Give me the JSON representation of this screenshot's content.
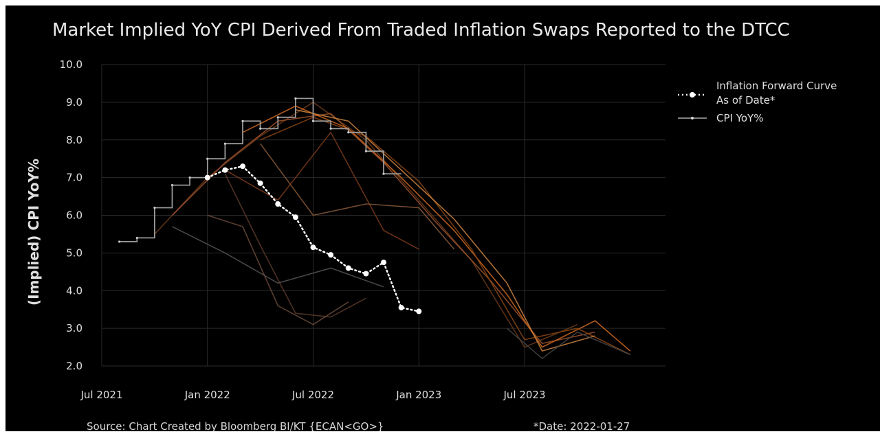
{
  "chart_data": {
    "type": "line",
    "title": "Market Implied YoY CPI Derived From Traded Inflation Swaps Reported to the DTCC",
    "ylabel": "(Implied) CPI YoY%",
    "xlabel": "",
    "ylim": [
      2.0,
      10.0
    ],
    "yticks": [
      "10.0",
      "9.0",
      "8.0",
      "7.0",
      "6.0",
      "5.0",
      "4.0",
      "3.0",
      "2.0"
    ],
    "xlim": [
      "2021-07",
      "2024-03"
    ],
    "xticks": [
      {
        "label": "Jul 2021",
        "date": "2021-07"
      },
      {
        "label": "Jan 2022",
        "date": "2022-01"
      },
      {
        "label": "Jul 2022",
        "date": "2022-07"
      },
      {
        "label": "Jan 2023",
        "date": "2023-01"
      },
      {
        "label": "Jul 2023",
        "date": "2023-07"
      }
    ],
    "grid": true,
    "legend_position": "top-right",
    "legend": [
      {
        "label": "Inflation Forward Curve",
        "label2": "As of Date*",
        "style": "dotted-white-markers"
      },
      {
        "label": "CPI YoY%",
        "style": "solid-line"
      }
    ],
    "series": [
      {
        "name": "Inflation Forward Curve As of Date*",
        "color": "#ffffff",
        "points": [
          [
            "2022-01",
            7.0
          ],
          [
            "2022-02",
            7.2
          ],
          [
            "2022-03",
            7.3
          ],
          [
            "2022-04",
            6.85
          ],
          [
            "2022-05",
            6.3
          ],
          [
            "2022-06",
            5.95
          ],
          [
            "2022-07",
            5.15
          ],
          [
            "2022-08",
            4.95
          ],
          [
            "2022-09",
            4.6
          ],
          [
            "2022-10",
            4.45
          ],
          [
            "2022-11",
            4.75
          ],
          [
            "2022-12",
            3.55
          ],
          [
            "2023-01",
            3.45
          ]
        ]
      },
      {
        "name": "CPI YoY%",
        "color": "#9a9a9a",
        "step": true,
        "points": [
          [
            "2021-08",
            5.3
          ],
          [
            "2021-09",
            5.4
          ],
          [
            "2021-10",
            6.2
          ],
          [
            "2021-11",
            6.8
          ],
          [
            "2021-12",
            7.0
          ],
          [
            "2022-01",
            7.5
          ],
          [
            "2022-02",
            7.9
          ],
          [
            "2022-03",
            8.5
          ],
          [
            "2022-04",
            8.3
          ],
          [
            "2022-05",
            8.6
          ],
          [
            "2022-06",
            9.1
          ],
          [
            "2022-07",
            8.5
          ],
          [
            "2022-08",
            8.3
          ],
          [
            "2022-09",
            8.2
          ],
          [
            "2022-10",
            7.7
          ],
          [
            "2022-11",
            7.1
          ]
        ]
      }
    ],
    "background_curves": [
      {
        "color": "#6b3a1a",
        "points": [
          [
            "2021-10",
            5.5
          ],
          [
            "2022-01",
            7.0
          ],
          [
            "2022-04",
            8.1
          ],
          [
            "2022-07",
            9.0
          ],
          [
            "2022-10",
            8.0
          ],
          [
            "2023-01",
            6.4
          ],
          [
            "2023-04",
            4.8
          ],
          [
            "2023-07",
            2.5
          ],
          [
            "2023-10",
            3.1
          ]
        ]
      },
      {
        "color": "#a0522d",
        "points": [
          [
            "2021-11",
            6.0
          ],
          [
            "2022-02",
            7.4
          ],
          [
            "2022-05",
            8.5
          ],
          [
            "2022-08",
            8.7
          ],
          [
            "2022-11",
            7.4
          ],
          [
            "2023-02",
            5.8
          ],
          [
            "2023-05",
            4.3
          ],
          [
            "2023-08",
            2.6
          ],
          [
            "2023-11",
            2.9
          ]
        ]
      },
      {
        "color": "#d2691e",
        "points": [
          [
            "2022-03",
            8.2
          ],
          [
            "2022-06",
            8.9
          ],
          [
            "2022-09",
            8.3
          ],
          [
            "2022-12",
            7.0
          ],
          [
            "2023-03",
            5.6
          ],
          [
            "2023-06",
            3.9
          ],
          [
            "2023-08",
            2.5
          ],
          [
            "2023-11",
            3.2
          ],
          [
            "2024-01",
            2.4
          ]
        ]
      },
      {
        "color": "#8b4513",
        "points": [
          [
            "2022-04",
            8.0
          ],
          [
            "2022-07",
            8.6
          ],
          [
            "2022-10",
            8.1
          ],
          [
            "2023-01",
            6.9
          ],
          [
            "2023-04",
            5.1
          ],
          [
            "2023-07",
            2.7
          ],
          [
            "2023-10",
            3.0
          ],
          [
            "2024-01",
            2.3
          ]
        ]
      },
      {
        "color": "#cd853f",
        "points": [
          [
            "2022-06",
            8.8
          ],
          [
            "2022-09",
            8.5
          ],
          [
            "2022-12",
            7.2
          ],
          [
            "2023-03",
            5.9
          ],
          [
            "2023-06",
            4.2
          ],
          [
            "2023-08",
            2.4
          ],
          [
            "2023-11",
            2.8
          ]
        ]
      },
      {
        "color": "#5a3a2a",
        "points": [
          [
            "2022-02",
            7.1
          ],
          [
            "2022-04",
            5.2
          ],
          [
            "2022-06",
            3.4
          ],
          [
            "2022-08",
            3.3
          ],
          [
            "2022-10",
            3.8
          ]
        ]
      },
      {
        "color": "#6a4a3a",
        "points": [
          [
            "2022-01",
            6.0
          ],
          [
            "2022-03",
            5.7
          ],
          [
            "2022-05",
            3.6
          ],
          [
            "2022-07",
            3.1
          ],
          [
            "2022-09",
            3.7
          ]
        ]
      },
      {
        "color": "#7a3a1a",
        "points": [
          [
            "2022-02",
            7.2
          ],
          [
            "2022-05",
            6.4
          ],
          [
            "2022-08",
            8.2
          ],
          [
            "2022-11",
            5.6
          ],
          [
            "2023-01",
            5.1
          ]
        ]
      },
      {
        "color": "#555555",
        "points": [
          [
            "2021-11",
            5.7
          ],
          [
            "2022-02",
            5.0
          ],
          [
            "2022-05",
            4.2
          ],
          [
            "2022-08",
            4.6
          ],
          [
            "2022-11",
            4.1
          ]
        ]
      },
      {
        "color": "#8a5a3a",
        "points": [
          [
            "2022-04",
            7.9
          ],
          [
            "2022-07",
            6.0
          ],
          [
            "2022-10",
            6.3
          ],
          [
            "2023-01",
            6.2
          ],
          [
            "2023-03",
            5.1
          ]
        ]
      },
      {
        "color": "#444444",
        "points": [
          [
            "2023-06",
            3.0
          ],
          [
            "2023-08",
            2.2
          ],
          [
            "2023-10",
            2.9
          ],
          [
            "2024-01",
            2.3
          ]
        ]
      }
    ]
  },
  "footer": {
    "source_text": "Source: Chart Created by Bloomberg BI/KT    {ECAN<GO>}",
    "date_note": "*Date: 2022-01-27"
  }
}
